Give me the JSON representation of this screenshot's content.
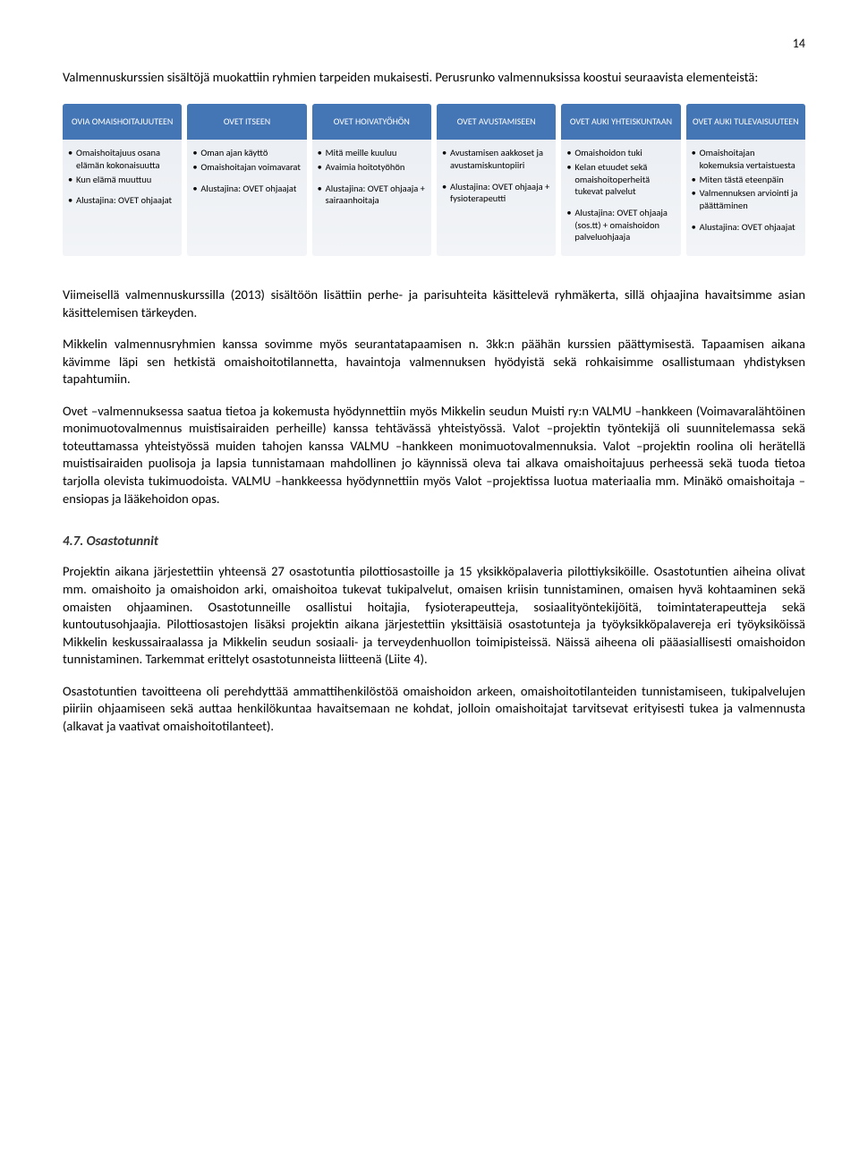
{
  "page_number": "14",
  "intro_line1": "Valmennuskurssien sisältöjä muokattiin ryhmien tarpeiden mukaisesti. Perusrunko valmennuksissa koostui",
  "intro_line2": "seuraavista elementeistä:",
  "cards": [
    {
      "title": "OVIA OMAISHOITAJUUTEEN",
      "items": [
        "Omaishoitajuus osana elämän kokonaisuutta",
        "Kun elämä muuttuu"
      ],
      "footer": "Alustajina: OVET ohjaajat"
    },
    {
      "title": "OVET ITSEEN",
      "items": [
        "Oman ajan käyttö",
        "Omaishoitajan voimavarat"
      ],
      "footer": "Alustajina: OVET ohjaajat"
    },
    {
      "title": "OVET HOIVATYÖHÖN",
      "items": [
        "Mitä meille kuuluu",
        "Avaimia hoitotyöhön"
      ],
      "footer": "Alustajina: OVET ohjaaja + sairaanhoitaja"
    },
    {
      "title": "OVET AVUSTAMISEEN",
      "items": [
        "Avustamisen aakkoset ja avustamiskuntopiiri"
      ],
      "footer": "Alustajina: OVET ohjaaja + fysioterapeutti"
    },
    {
      "title": "OVET AUKI YHTEISKUNTAAN",
      "items": [
        "Omaishoidon tuki",
        "Kelan etuudet sekä omaishoitoperheitä tukevat palvelut"
      ],
      "footer": "Alustajina: OVET ohjaaja (sos.tt) + omaishoidon palveluohjaaja"
    },
    {
      "title": "OVET AUKI TULEVAISUUTEEN",
      "items": [
        "Omaishoitajan kokemuksia vertaistuesta",
        "Miten tästä eteenpäin",
        "Valmennuksen arviointi ja päättäminen"
      ],
      "footer": "Alustajina: OVET ohjaajat"
    }
  ],
  "paragraphs": {
    "p1": "Viimeisellä valmennuskurssilla (2013) sisältöön lisättiin perhe- ja parisuhteita käsittelevä ryhmäkerta, sillä ohjaajina havaitsimme asian käsittelemisen tärkeyden.",
    "p2": "Mikkelin valmennusryhmien kanssa sovimme myös seurantatapaamisen n. 3kk:n päähän kurssien päätty­misestä. Tapaamisen aikana kävimme läpi sen hetkistä omaishoitotilannetta, havaintoja valmennuksen hyödyistä sekä rohkaisimme osallistumaan yhdistyksen tapahtumiin.",
    "p3": "Ovet –valmennuksessa saatua tietoa ja kokemusta hyödynnettiin myös Mikkelin seudun Muisti ry:n VALMU –hankkeen (Voimavaralähtöinen monimuotovalmennus muistisairaiden perheille) kanssa tehtävässä yhteis­työssä. Valot –projektin työntekijä oli suunnitelemassa sekä toteuttamassa yhteistyössä muiden tahojen kanssa VALMU –hankkeen monimuotovalmennuksia. Valot –projektin roolina oli herätellä muistisairaiden puolisoja ja lapsia tunnistamaan mahdollinen jo käynnissä oleva tai alkava omaishoitajuus perheessä sekä tuoda tietoa tarjolla olevista tukimuodoista. VALMU –hankkeessa hyödynnettiin myös Valot –projektissa luotua materiaalia mm. Minäkö omaishoitaja –ensiopas ja lääkehoidon opas."
  },
  "section_head": "4.7. Osastotunnit",
  "section_paras": {
    "s1": "Projektin aikana järjestettiin yhteensä 27 osastotuntia pilottiosastoille ja 15 yksikköpalaveria pilottiyksi­köille. Osastotuntien aiheina olivat mm. omaishoito ja omaishoidon arki, omaishoitoa tukevat tukipalvelut, omaisen kriisin tunnistaminen, omaisen hyvä kohtaaminen sekä omaisten ohjaaminen. Osastotunneille osallistui hoitajia, fysioterapeutteja, sosiaalityöntekijöitä, toimintaterapeutteja sekä kuntoutusohjaajia. Pi­lottiosastojen lisäksi projektin aikana järjestettiin yksittäisiä osastotunteja ja työyksikköpalavereja eri työyk­siköissä Mikkelin keskussairaalassa ja Mikkelin seudun sosiaali- ja terveydenhuollon toimipisteissä. Näissä aiheena oli pääasiallisesti omaishoidon tunnistaminen. Tarkemmat erittelyt osastotunneista liitteenä (Liite 4).",
    "s2": "Osastotuntien tavoitteena oli perehdyttää ammattihenkilöstöä omaishoidon arkeen, omaishoitotilanteiden tunnistamiseen, tukipalvelujen piiriin ohjaamiseen sekä auttaa henkilökuntaa havaitsemaan ne kohdat, jol­loin omaishoitajat tarvitsevat erityisesti tukea ja valmennusta (alkavat ja vaativat omaishoitotilanteet)."
  },
  "colors": {
    "header_bg": "#4475b5",
    "card_bg_top": "#e9edf2",
    "card_bg_bot": "#f2f4f7"
  }
}
